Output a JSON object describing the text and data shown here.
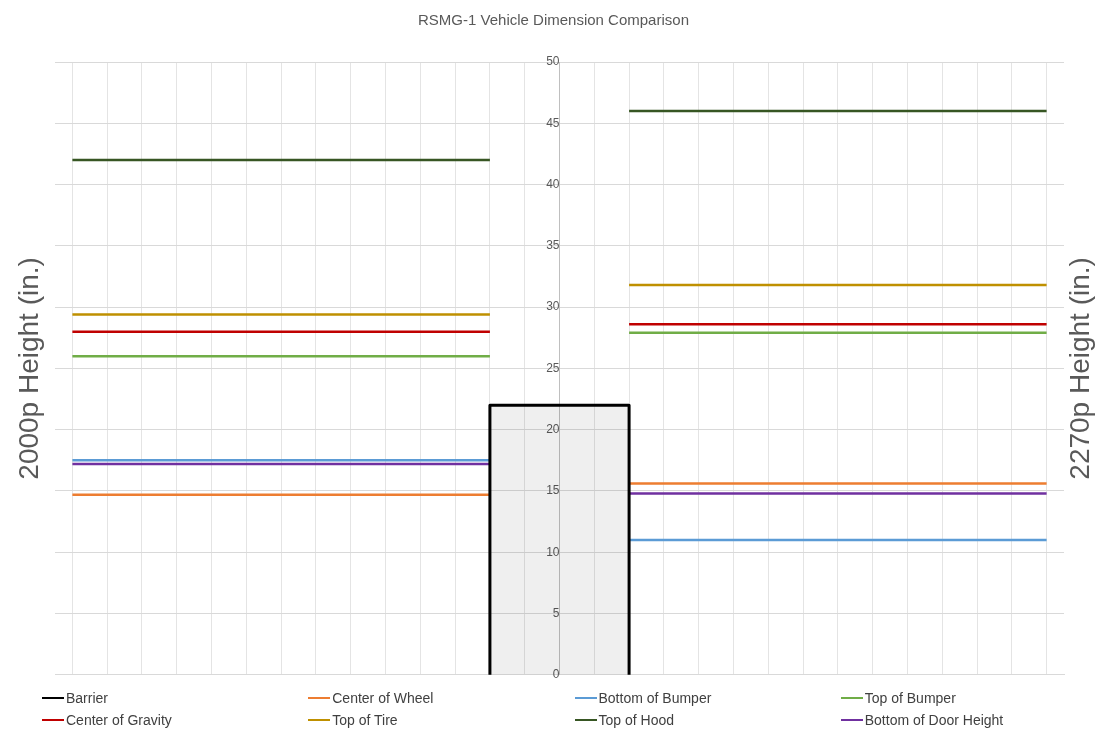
{
  "chart_data": {
    "type": "line",
    "title": "RSMG-1 Vehicle Dimension Comparison",
    "ylabel": "2000p Height (in.)",
    "y2label": "2270p Height (in.)",
    "categories": [
      null,
      null,
      null,
      null,
      null,
      null,
      null,
      null,
      null,
      null,
      null,
      null,
      null,
      null,
      null,
      null,
      null,
      null,
      null,
      null,
      null,
      null,
      null,
      null,
      null,
      null,
      null,
      null,
      null
    ],
    "ylim": [
      0,
      50
    ],
    "yticks": [
      0,
      5,
      10,
      15,
      20,
      25,
      30,
      35,
      40,
      45,
      50
    ],
    "grid": true,
    "tick_labels": "y",
    "legend": "bottom",
    "marker": "none",
    "series": [
      {
        "name": "Barrier",
        "type": "area",
        "color": "#000000",
        "values": [
          null,
          null,
          null,
          null,
          null,
          null,
          null,
          null,
          null,
          null,
          null,
          null,
          22,
          22,
          22,
          22,
          22,
          null,
          null,
          null,
          null,
          null,
          null,
          null,
          null,
          null,
          null,
          null,
          null
        ]
      },
      {
        "name": "Center of Wheel",
        "color": "#ed7d31",
        "values": [
          14.7,
          14.7,
          14.7,
          14.7,
          14.7,
          14.7,
          14.7,
          14.7,
          14.7,
          14.7,
          14.7,
          14.7,
          14.7,
          null,
          null,
          null,
          15.6,
          15.6,
          15.6,
          15.6,
          15.6,
          15.6,
          15.6,
          15.6,
          15.6,
          15.6,
          15.6,
          15.6,
          15.6
        ]
      },
      {
        "name": "Bottom of Bumper",
        "color": "#5b9bd5",
        "values": [
          17.5,
          17.5,
          17.5,
          17.5,
          17.5,
          17.5,
          17.5,
          17.5,
          17.5,
          17.5,
          17.5,
          17.5,
          17.5,
          null,
          null,
          null,
          11,
          11,
          11,
          11,
          11,
          11,
          11,
          11,
          11,
          11,
          11,
          11,
          11
        ]
      },
      {
        "name": "Top of Bumper",
        "color": "#70ad47",
        "values": [
          26,
          26,
          26,
          26,
          26,
          26,
          26,
          26,
          26,
          26,
          26,
          26,
          26,
          null,
          null,
          null,
          27.9,
          27.9,
          27.9,
          27.9,
          27.9,
          27.9,
          27.9,
          27.9,
          27.9,
          27.9,
          27.9,
          27.9,
          27.9
        ]
      },
      {
        "name": "Center of Gravity",
        "color": "#c00000",
        "values": [
          28,
          28,
          28,
          28,
          28,
          28,
          28,
          28,
          28,
          28,
          28,
          28,
          28,
          null,
          null,
          null,
          28.6,
          28.6,
          28.6,
          28.6,
          28.6,
          28.6,
          28.6,
          28.6,
          28.6,
          28.6,
          28.6,
          28.6,
          28.6
        ]
      },
      {
        "name": "Top of Tire",
        "color": "#bf9000",
        "values": [
          29.4,
          29.4,
          29.4,
          29.4,
          29.4,
          29.4,
          29.4,
          29.4,
          29.4,
          29.4,
          29.4,
          29.4,
          29.4,
          null,
          null,
          null,
          31.8,
          31.8,
          31.8,
          31.8,
          31.8,
          31.8,
          31.8,
          31.8,
          31.8,
          31.8,
          31.8,
          31.8,
          31.8
        ]
      },
      {
        "name": "Top of Hood",
        "color": "#375623",
        "values": [
          42,
          42,
          42,
          42,
          42,
          42,
          42,
          42,
          42,
          42,
          42,
          42,
          42,
          null,
          null,
          null,
          46,
          46,
          46,
          46,
          46,
          46,
          46,
          46,
          46,
          46,
          46,
          46,
          46
        ]
      },
      {
        "name": "Bottom of Door Height",
        "color": "#7030a0",
        "values": [
          17.2,
          17.2,
          17.2,
          17.2,
          17.2,
          17.2,
          17.2,
          17.2,
          17.2,
          17.2,
          17.2,
          17.2,
          17.2,
          null,
          null,
          null,
          14.8,
          14.8,
          14.8,
          14.8,
          14.8,
          14.8,
          14.8,
          14.8,
          14.8,
          14.8,
          14.8,
          14.8,
          14.8
        ]
      }
    ]
  }
}
